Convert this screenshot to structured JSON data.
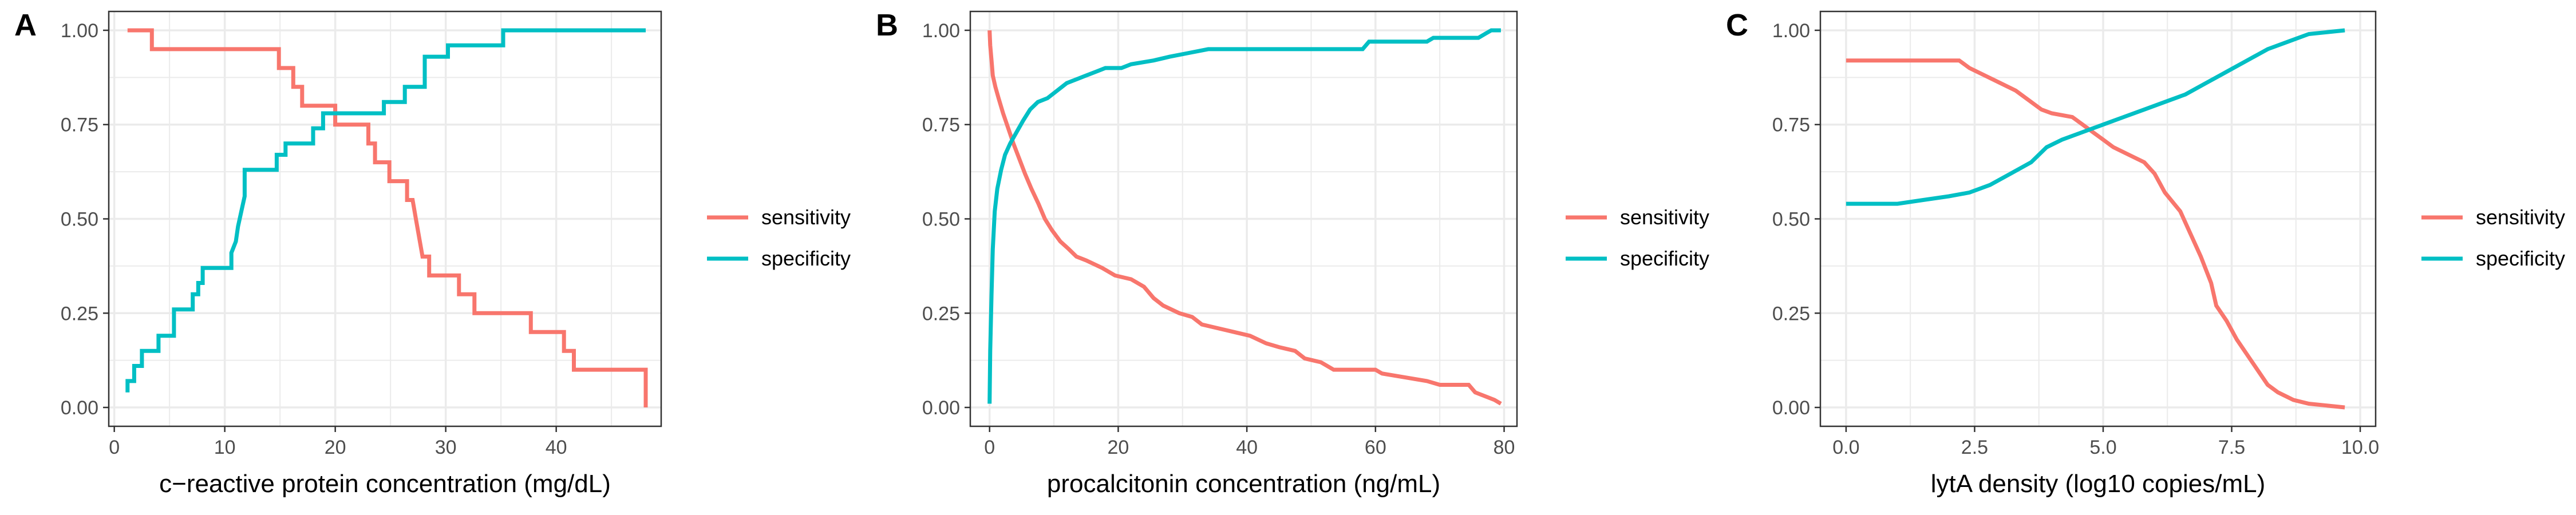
{
  "colors": {
    "sensitivity": "#F8766D",
    "specificity": "#00BFC4",
    "grid": "#ebebeb",
    "border": "#333333"
  },
  "chart_data": [
    {
      "tag": "A",
      "type": "line",
      "xlabel": "c−reactive protein concentration (mg/dL)",
      "ylabel": "",
      "xlim": [
        -0.5,
        49.5
      ],
      "ylim": [
        -0.05,
        1.05
      ],
      "xticks": [
        0,
        10,
        20,
        30,
        40,
        50
      ],
      "yticks": [
        0.0,
        0.25,
        0.5,
        0.75,
        1.0
      ],
      "ytick_labels": [
        "0.00",
        "0.25",
        "0.50",
        "0.75",
        "1.00"
      ],
      "grid": true,
      "legend": "right",
      "series": [
        {
          "name": "sensitivity",
          "color": "#F8766D",
          "points": [
            [
              1.2,
              1.0
            ],
            [
              3.4,
              1.0
            ],
            [
              3.4,
              0.95
            ],
            [
              14.9,
              0.95
            ],
            [
              14.9,
              0.9
            ],
            [
              16.2,
              0.9
            ],
            [
              16.2,
              0.85
            ],
            [
              17.0,
              0.85
            ],
            [
              17.0,
              0.8
            ],
            [
              20.0,
              0.8
            ],
            [
              20.0,
              0.75
            ],
            [
              23.0,
              0.75
            ],
            [
              23.0,
              0.7
            ],
            [
              23.6,
              0.7
            ],
            [
              23.6,
              0.65
            ],
            [
              24.9,
              0.65
            ],
            [
              24.9,
              0.6
            ],
            [
              26.5,
              0.6
            ],
            [
              26.5,
              0.55
            ],
            [
              27.0,
              0.55
            ],
            [
              27.3,
              0.5
            ],
            [
              27.6,
              0.45
            ],
            [
              27.9,
              0.4
            ],
            [
              28.5,
              0.4
            ],
            [
              28.5,
              0.35
            ],
            [
              31.2,
              0.35
            ],
            [
              31.2,
              0.3
            ],
            [
              32.6,
              0.3
            ],
            [
              32.6,
              0.25
            ],
            [
              37.7,
              0.25
            ],
            [
              37.7,
              0.2
            ],
            [
              40.7,
              0.2
            ],
            [
              40.7,
              0.15
            ],
            [
              41.6,
              0.15
            ],
            [
              41.6,
              0.1
            ],
            [
              48.1,
              0.1
            ],
            [
              48.1,
              0.0
            ]
          ]
        },
        {
          "name": "specificity",
          "color": "#00BFC4",
          "points": [
            [
              1.2,
              0.04
            ],
            [
              1.2,
              0.07
            ],
            [
              1.8,
              0.07
            ],
            [
              1.8,
              0.11
            ],
            [
              2.5,
              0.11
            ],
            [
              2.5,
              0.15
            ],
            [
              4.0,
              0.15
            ],
            [
              4.0,
              0.19
            ],
            [
              5.4,
              0.19
            ],
            [
              5.4,
              0.26
            ],
            [
              7.1,
              0.26
            ],
            [
              7.1,
              0.3
            ],
            [
              7.6,
              0.3
            ],
            [
              7.6,
              0.33
            ],
            [
              8.0,
              0.33
            ],
            [
              8.0,
              0.37
            ],
            [
              10.6,
              0.37
            ],
            [
              10.6,
              0.41
            ],
            [
              11.0,
              0.44
            ],
            [
              11.2,
              0.48
            ],
            [
              11.5,
              0.52
            ],
            [
              11.8,
              0.56
            ],
            [
              11.8,
              0.63
            ],
            [
              14.7,
              0.63
            ],
            [
              14.7,
              0.67
            ],
            [
              15.5,
              0.67
            ],
            [
              15.5,
              0.7
            ],
            [
              18.0,
              0.7
            ],
            [
              18.0,
              0.74
            ],
            [
              18.9,
              0.74
            ],
            [
              18.9,
              0.78
            ],
            [
              24.4,
              0.78
            ],
            [
              24.4,
              0.81
            ],
            [
              26.3,
              0.81
            ],
            [
              26.3,
              0.85
            ],
            [
              28.1,
              0.85
            ],
            [
              28.1,
              0.93
            ],
            [
              30.2,
              0.93
            ],
            [
              30.2,
              0.96
            ],
            [
              35.2,
              0.96
            ],
            [
              35.2,
              1.0
            ],
            [
              48.1,
              1.0
            ]
          ]
        }
      ]
    },
    {
      "tag": "B",
      "type": "line",
      "xlabel": "procalcitonin concentration (ng/mL)",
      "ylabel": "",
      "xlim": [
        -3.0,
        82.0
      ],
      "ylim": [
        -0.05,
        1.05
      ],
      "xticks": [
        0,
        20,
        40,
        60,
        80
      ],
      "yticks": [
        0.0,
        0.25,
        0.5,
        0.75,
        1.0
      ],
      "ytick_labels": [
        "0.00",
        "0.25",
        "0.50",
        "0.75",
        "1.00"
      ],
      "grid": true,
      "legend": "right",
      "series": [
        {
          "name": "sensitivity",
          "color": "#F8766D",
          "points": [
            [
              0.0,
              1.0
            ],
            [
              0.1,
              0.96
            ],
            [
              0.3,
              0.92
            ],
            [
              0.5,
              0.88
            ],
            [
              0.9,
              0.85
            ],
            [
              1.4,
              0.82
            ],
            [
              2.1,
              0.78
            ],
            [
              2.9,
              0.74
            ],
            [
              3.7,
              0.7
            ],
            [
              4.6,
              0.66
            ],
            [
              5.5,
              0.62
            ],
            [
              6.5,
              0.58
            ],
            [
              7.6,
              0.54
            ],
            [
              8.6,
              0.5
            ],
            [
              9.7,
              0.47
            ],
            [
              11.0,
              0.44
            ],
            [
              12.3,
              0.42
            ],
            [
              13.5,
              0.4
            ],
            [
              15.0,
              0.39
            ],
            [
              17.5,
              0.37
            ],
            [
              19.5,
              0.35
            ],
            [
              22.0,
              0.34
            ],
            [
              24.0,
              0.32
            ],
            [
              25.5,
              0.29
            ],
            [
              27.0,
              0.27
            ],
            [
              29.5,
              0.25
            ],
            [
              31.5,
              0.24
            ],
            [
              33.0,
              0.22
            ],
            [
              35.5,
              0.21
            ],
            [
              38.0,
              0.2
            ],
            [
              40.5,
              0.19
            ],
            [
              43.0,
              0.17
            ],
            [
              45.0,
              0.16
            ],
            [
              47.5,
              0.15
            ],
            [
              49.0,
              0.13
            ],
            [
              51.5,
              0.12
            ],
            [
              53.5,
              0.1
            ],
            [
              60.0,
              0.1
            ],
            [
              61.0,
              0.09
            ],
            [
              64.5,
              0.08
            ],
            [
              68.0,
              0.07
            ],
            [
              70.0,
              0.06
            ],
            [
              74.5,
              0.06
            ],
            [
              75.5,
              0.04
            ],
            [
              77.0,
              0.03
            ],
            [
              78.5,
              0.02
            ],
            [
              79.5,
              0.01
            ]
          ]
        },
        {
          "name": "specificity",
          "color": "#00BFC4",
          "points": [
            [
              0.0,
              0.01
            ],
            [
              0.1,
              0.15
            ],
            [
              0.3,
              0.3
            ],
            [
              0.5,
              0.42
            ],
            [
              0.8,
              0.52
            ],
            [
              1.2,
              0.58
            ],
            [
              1.8,
              0.63
            ],
            [
              2.4,
              0.67
            ],
            [
              3.2,
              0.7
            ],
            [
              4.2,
              0.73
            ],
            [
              5.2,
              0.76
            ],
            [
              6.3,
              0.79
            ],
            [
              7.5,
              0.81
            ],
            [
              9.0,
              0.82
            ],
            [
              10.5,
              0.84
            ],
            [
              12.0,
              0.86
            ],
            [
              13.5,
              0.87
            ],
            [
              15.0,
              0.88
            ],
            [
              16.5,
              0.89
            ],
            [
              18.0,
              0.9
            ],
            [
              20.5,
              0.9
            ],
            [
              22.0,
              0.91
            ],
            [
              25.5,
              0.92
            ],
            [
              28.0,
              0.93
            ],
            [
              31.0,
              0.94
            ],
            [
              34.0,
              0.95
            ],
            [
              58.0,
              0.95
            ],
            [
              59.0,
              0.97
            ],
            [
              68.0,
              0.97
            ],
            [
              69.0,
              0.98
            ],
            [
              76.0,
              0.98
            ],
            [
              77.0,
              0.99
            ],
            [
              78.0,
              1.0
            ],
            [
              79.5,
              1.0
            ]
          ]
        }
      ]
    },
    {
      "tag": "C",
      "type": "line",
      "xlabel": "lytA density (log10 copies/mL)",
      "ylabel": "",
      "xlim": [
        -0.5,
        10.3
      ],
      "ylim": [
        -0.05,
        1.05
      ],
      "xticks": [
        0.0,
        2.5,
        5.0,
        7.5,
        10.0
      ],
      "xtick_labels": [
        "0.0",
        "2.5",
        "5.0",
        "7.5",
        "10.0"
      ],
      "yticks": [
        0.0,
        0.25,
        0.5,
        0.75,
        1.0
      ],
      "ytick_labels": [
        "0.00",
        "0.25",
        "0.50",
        "0.75",
        "1.00"
      ],
      "grid": true,
      "legend": "right",
      "series": [
        {
          "name": "sensitivity",
          "color": "#F8766D",
          "points": [
            [
              0.0,
              0.92
            ],
            [
              2.2,
              0.92
            ],
            [
              2.4,
              0.9
            ],
            [
              2.7,
              0.88
            ],
            [
              3.0,
              0.86
            ],
            [
              3.3,
              0.84
            ],
            [
              3.6,
              0.81
            ],
            [
              3.8,
              0.79
            ],
            [
              4.0,
              0.78
            ],
            [
              4.4,
              0.77
            ],
            [
              4.6,
              0.75
            ],
            [
              4.8,
              0.73
            ],
            [
              5.0,
              0.71
            ],
            [
              5.2,
              0.69
            ],
            [
              5.5,
              0.67
            ],
            [
              5.8,
              0.65
            ],
            [
              6.0,
              0.62
            ],
            [
              6.2,
              0.57
            ],
            [
              6.5,
              0.52
            ],
            [
              6.7,
              0.46
            ],
            [
              6.9,
              0.4
            ],
            [
              7.1,
              0.33
            ],
            [
              7.2,
              0.27
            ],
            [
              7.4,
              0.23
            ],
            [
              7.6,
              0.18
            ],
            [
              7.8,
              0.14
            ],
            [
              8.0,
              0.1
            ],
            [
              8.2,
              0.06
            ],
            [
              8.4,
              0.04
            ],
            [
              8.7,
              0.02
            ],
            [
              9.0,
              0.01
            ],
            [
              9.7,
              0.0
            ]
          ]
        },
        {
          "name": "specificity",
          "color": "#00BFC4",
          "points": [
            [
              0.0,
              0.54
            ],
            [
              1.0,
              0.54
            ],
            [
              1.5,
              0.55
            ],
            [
              2.0,
              0.56
            ],
            [
              2.4,
              0.57
            ],
            [
              2.8,
              0.59
            ],
            [
              3.2,
              0.62
            ],
            [
              3.6,
              0.65
            ],
            [
              3.9,
              0.69
            ],
            [
              4.2,
              0.71
            ],
            [
              4.6,
              0.73
            ],
            [
              5.0,
              0.75
            ],
            [
              5.4,
              0.77
            ],
            [
              5.8,
              0.79
            ],
            [
              6.2,
              0.81
            ],
            [
              6.6,
              0.83
            ],
            [
              7.0,
              0.86
            ],
            [
              7.4,
              0.89
            ],
            [
              7.8,
              0.92
            ],
            [
              8.2,
              0.95
            ],
            [
              8.6,
              0.97
            ],
            [
              9.0,
              0.99
            ],
            [
              9.7,
              1.0
            ]
          ]
        }
      ]
    }
  ]
}
